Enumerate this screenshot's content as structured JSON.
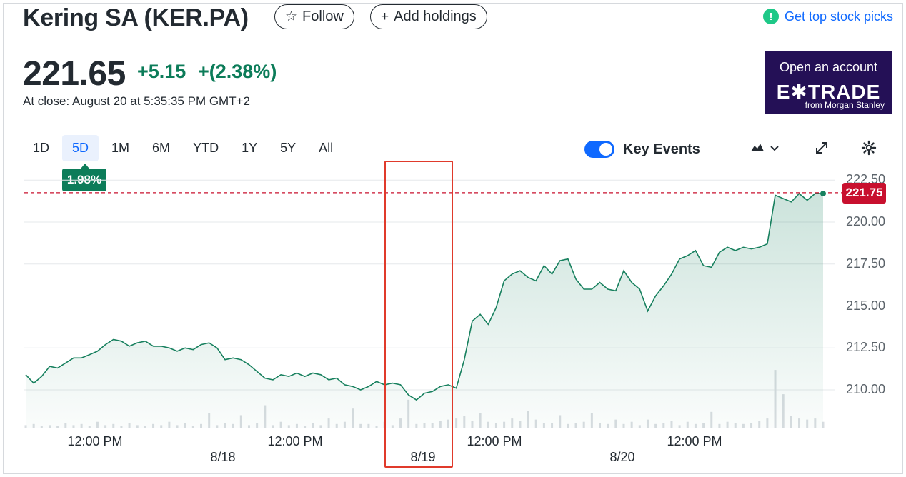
{
  "header": {
    "title": "Kering SA (KER.PA)",
    "follow_label": "Follow",
    "add_holdings_label": "Add holdings",
    "top_picks_label": "Get top stock picks"
  },
  "quote": {
    "price": "221.65",
    "change": "+5.15",
    "change_pct": "+(2.38%)",
    "close_time": "At close: August 20 at 5:35:35 PM GMT+2"
  },
  "ad": {
    "line1": "Open an account",
    "brand": "E✱TRADE",
    "line3": "from Morgan Stanley"
  },
  "ranges": [
    "1D",
    "5D",
    "1M",
    "6M",
    "YTD",
    "1Y",
    "5Y",
    "All"
  ],
  "active_range": "5D",
  "performance_badge": "1.98%",
  "key_events_label": "Key Events",
  "key_events_on": true,
  "colors": {
    "up": "#0c7c59",
    "line": "#17805e",
    "accent": "#0f69ff",
    "current_tag": "#c8102e",
    "highlight": "#e03a2b"
  },
  "icons": [
    "star-icon",
    "plus-icon",
    "exclamation-icon",
    "mountain-chart-icon",
    "chevron-down-icon",
    "expand-icon",
    "gear-icon"
  ],
  "chart_data": {
    "type": "area",
    "y_ticks": [
      "222.50",
      "220.00",
      "217.50",
      "215.00",
      "212.50",
      "210.00"
    ],
    "ylim": [
      208.2,
      222.6
    ],
    "current_value": "221.75",
    "x_ticks": [
      "12:00 PM",
      "12:00 PM",
      "12:00 PM",
      "12:00 PM"
    ],
    "date_labels": [
      "8/18",
      "8/19",
      "8/20"
    ],
    "series": [
      {
        "values": [
          210.9,
          210.4,
          210.8,
          211.4,
          211.3,
          211.6,
          211.9,
          211.9,
          212.1,
          212.3,
          212.7,
          213.0,
          212.9,
          212.6,
          212.8,
          212.9,
          212.6,
          212.6,
          212.5,
          212.3,
          212.5,
          212.4,
          212.7,
          212.8,
          212.5,
          211.8,
          211.9,
          211.8,
          211.5,
          211.1,
          210.7,
          210.6,
          210.9,
          210.8,
          211.0,
          210.8,
          211.0,
          210.9,
          210.6,
          210.7,
          210.3,
          210.2,
          210.0,
          210.2,
          210.5,
          210.3,
          210.4,
          210.3,
          209.7,
          209.4,
          209.8,
          209.9,
          210.2,
          210.3,
          210.1,
          211.8,
          214.1,
          214.5,
          213.9,
          214.9,
          216.5,
          216.9,
          217.1,
          216.7,
          216.5,
          217.4,
          216.9,
          217.7,
          217.8,
          216.6,
          216.0,
          216.0,
          216.4,
          216.0,
          215.9,
          217.1,
          216.4,
          216.0,
          214.7,
          215.6,
          216.2,
          216.9,
          217.8,
          218.0,
          218.3,
          217.4,
          217.3,
          218.2,
          218.5,
          218.3,
          218.5,
          218.4,
          218.5,
          218.7,
          221.6,
          221.4,
          221.2,
          221.7,
          221.3,
          221.7,
          221.7
        ],
        "volume": [
          0.03,
          0.04,
          0.02,
          0.03,
          0.02,
          0.05,
          0.03,
          0.04,
          0.02,
          0.06,
          0.03,
          0.04,
          0.02,
          0.05,
          0.03,
          0.02,
          0.04,
          0.03,
          0.06,
          0.03,
          0.05,
          0.02,
          0.04,
          0.14,
          0.03,
          0.05,
          0.04,
          0.12,
          0.03,
          0.05,
          0.21,
          0.03,
          0.06,
          0.03,
          0.04,
          0.02,
          0.05,
          0.03,
          0.09,
          0.04,
          0.06,
          0.18,
          0.04,
          0.04,
          0.02,
          0.06,
          0.03,
          0.09,
          0.26,
          0.04,
          0.05,
          0.05,
          0.07,
          0.08,
          0.09,
          0.11,
          0.07,
          0.14,
          0.06,
          0.05,
          0.06,
          0.09,
          0.07,
          0.16,
          0.08,
          0.05,
          0.05,
          0.12,
          0.04,
          0.05,
          0.06,
          0.14,
          0.05,
          0.04,
          0.08,
          0.04,
          0.06,
          0.03,
          0.08,
          0.04,
          0.05,
          0.07,
          0.03,
          0.06,
          0.04,
          0.05,
          0.15,
          0.04,
          0.06,
          0.05,
          0.04,
          0.05,
          0.07,
          0.09,
          0.53,
          0.31,
          0.11,
          0.09,
          0.08,
          0.09,
          0.06
        ]
      }
    ]
  }
}
